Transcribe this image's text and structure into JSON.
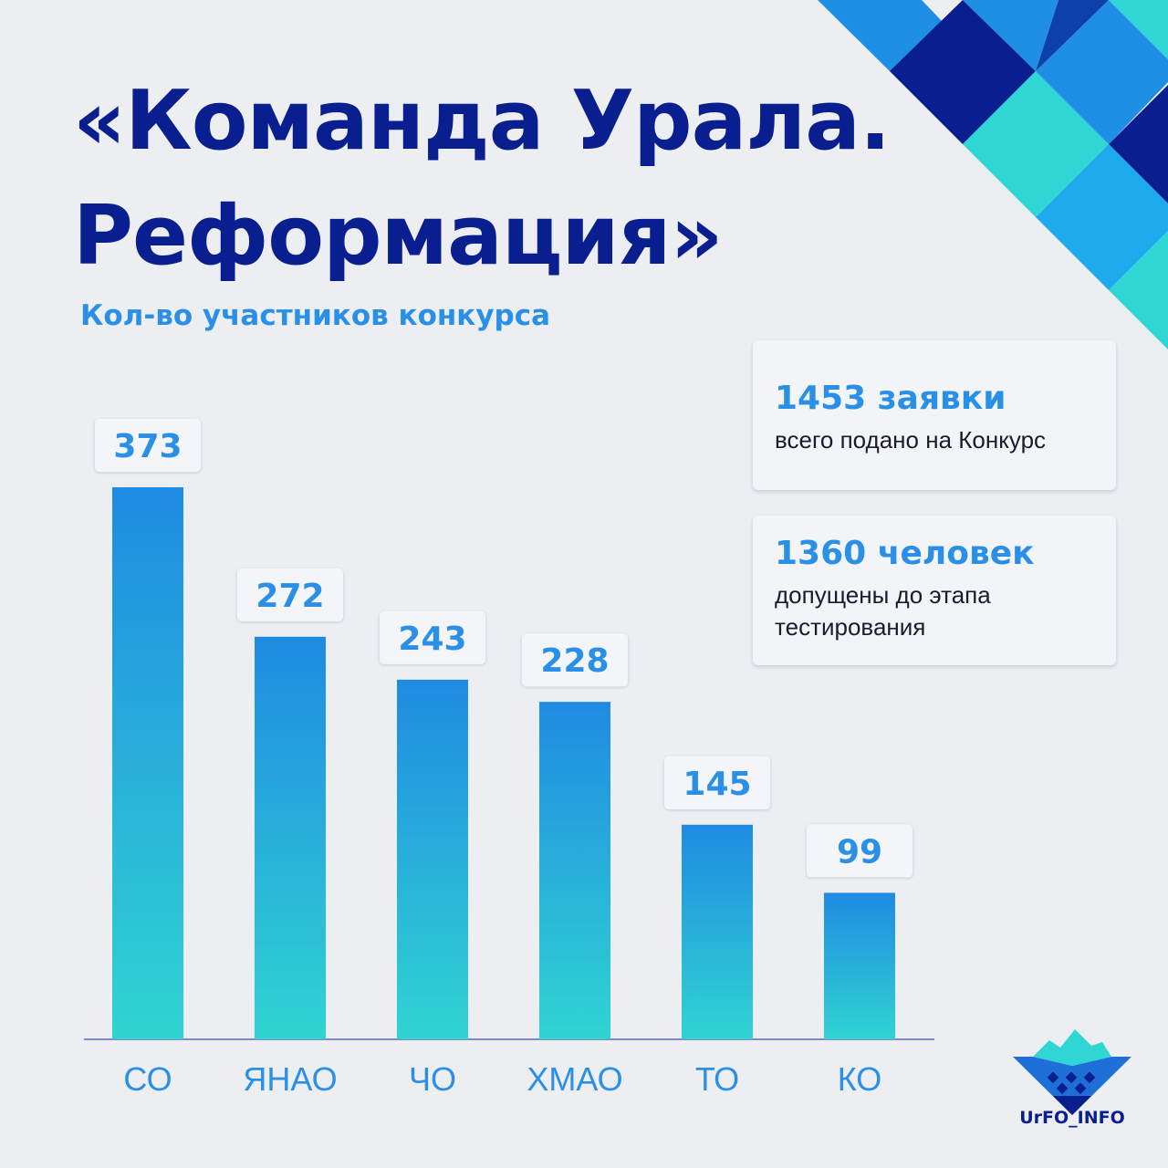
{
  "header": {
    "title_line1": "«Команда Урала.",
    "title_line2": "Реформация»"
  },
  "subtitle": "Кол-во участников конкурса",
  "stats": [
    {
      "value": "1453 заявки",
      "description": "всего подано на Конкурс"
    },
    {
      "value": "1360 человек",
      "description": "допущены до этапа тестирования"
    }
  ],
  "logo": {
    "text": "UrFO_INFO",
    "icon": "ural-mountains-logo-icon"
  },
  "colors": {
    "title": "#0a1f8f",
    "accent": "#2a8fe6",
    "bar_top": "#1f8be2",
    "bar_bottom": "#30d4d2",
    "background": "#eceef1"
  },
  "chart_data": {
    "type": "bar",
    "title": "Кол-во участников конкурса",
    "categories": [
      "СО",
      "ЯНАО",
      "ЧО",
      "ХМАО",
      "ТО",
      "КО"
    ],
    "values": [
      373,
      272,
      243,
      228,
      145,
      99
    ],
    "xlabel": "",
    "ylabel": "",
    "ylim": [
      0,
      373
    ],
    "grid": false,
    "legend": "none"
  }
}
